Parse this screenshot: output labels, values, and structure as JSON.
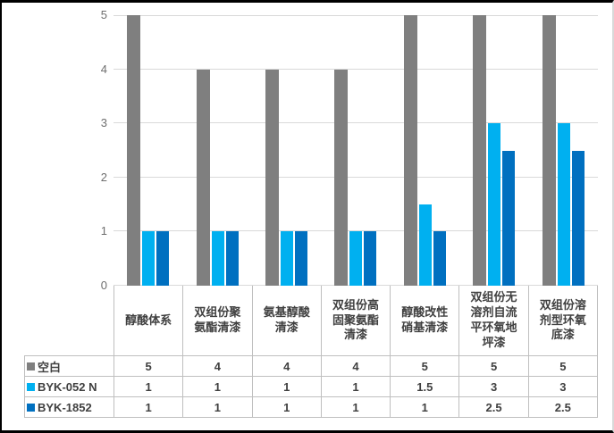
{
  "colors": {
    "series_blank": "#7f7f7f",
    "series_byk052n": "#00b0f0",
    "series_byk1852": "#0070c0",
    "gridline": "#d9d9d9",
    "axis_text": "#6e6e6e",
    "table_border": "#bfbfbf",
    "table_text": "#404040",
    "frame_border": "#000000"
  },
  "chart_data": {
    "type": "bar",
    "title": "",
    "xlabel": "",
    "ylabel": "",
    "ylim": [
      0,
      5
    ],
    "yticks": [
      0,
      1,
      2,
      3,
      4,
      5
    ],
    "grid": true,
    "legend_position": "data-table-left",
    "categories": [
      "醇酸体系",
      "双组份聚氨酯清漆",
      "氨基醇酸清漆",
      "双组份高固聚氨酯清漆",
      "醇酸改性硝基清漆",
      "双组份无溶剂自流平环氧地坪漆",
      "双组份溶剂型环氧底漆"
    ],
    "series": [
      {
        "name": "空白",
        "color": "#7f7f7f",
        "values": [
          5,
          4,
          4,
          4,
          5,
          5,
          5
        ]
      },
      {
        "name": "BYK-052 N",
        "color": "#00b0f0",
        "values": [
          1,
          1,
          1,
          1,
          1.5,
          3,
          3
        ]
      },
      {
        "name": "BYK-1852",
        "color": "#0070c0",
        "values": [
          1,
          1,
          1,
          1,
          1,
          2.5,
          2.5
        ]
      }
    ]
  }
}
